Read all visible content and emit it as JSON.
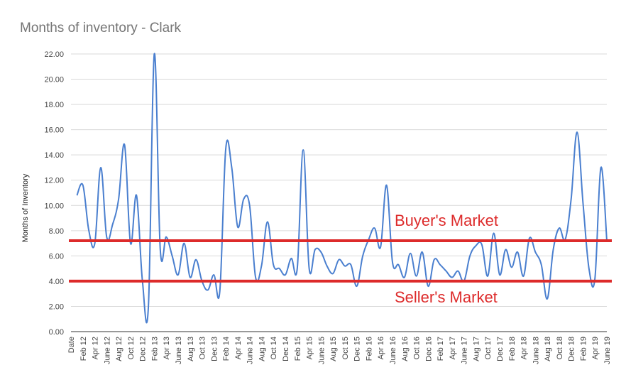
{
  "chart_data": {
    "type": "line",
    "title": "Months of inventory - Clark",
    "ylabel": "Months of Inventory",
    "xlabel": "",
    "ylim": [
      0,
      22
    ],
    "y_ticks": [
      "0.00",
      "2.00",
      "4.00",
      "6.00",
      "8.00",
      "10.00",
      "12.00",
      "14.00",
      "16.00",
      "18.00",
      "20.00",
      "22.00"
    ],
    "grid": "horizontal",
    "line_color": "#4a7fcf",
    "x": [
      "Date",
      "Jan 12",
      "Feb 12",
      "Mar 12",
      "Apr 12",
      "May 12",
      "June 12",
      "Jul 12",
      "Aug 12",
      "Sep 12",
      "Oct 12",
      "Nov 12",
      "Dec 12",
      "Jan 13",
      "Feb 13",
      "Mar 13",
      "Apr 13",
      "May 13",
      "June 13",
      "Jul 13",
      "Aug 13",
      "Sep 13",
      "Oct 13",
      "Nov 13",
      "Dec 13",
      "Jan 14",
      "Feb 14",
      "Mar 14",
      "Apr 14",
      "May 14",
      "June 14",
      "Jul 14",
      "Aug 14",
      "Sep 14",
      "Oct 14",
      "Nov 14",
      "Dec 14",
      "Jan 15",
      "Feb 15",
      "Mar 15",
      "Apr 15",
      "May 15",
      "June 15",
      "Jul 15",
      "Aug 15",
      "Sep 15",
      "Oct 15",
      "Nov 15",
      "Dec 15",
      "Jan 16",
      "Feb 16",
      "Mar 16",
      "Apr 16",
      "May 16",
      "June 16",
      "Jul 16",
      "Aug 16",
      "Sep 16",
      "Oct 16",
      "Nov 16",
      "Dec 16",
      "Jan 17",
      "Feb 17",
      "Mar 17",
      "Apr 17",
      "May 17",
      "June 17",
      "Jul 17",
      "Aug 17",
      "Sep 17",
      "Oct 17",
      "Nov 17",
      "Dec 17",
      "Jan 18",
      "Feb 18",
      "Mar 18",
      "Apr 18",
      "May 18",
      "June 18",
      "Jul 18",
      "Aug 18",
      "Sep 18",
      "Oct 18",
      "Nov 18",
      "Dec 18",
      "Jan 19",
      "Feb 19",
      "Mar 19",
      "Apr 19",
      "May 19",
      "June 19"
    ],
    "x_tick_labels": [
      "Date",
      "Feb 12",
      "Apr 12",
      "June 12",
      "Aug 12",
      "Oct 12",
      "Dec 12",
      "Feb 13",
      "Apr 13",
      "June 13",
      "Aug 13",
      "Oct 13",
      "Dec 13",
      "Feb 14",
      "Apr 14",
      "June 14",
      "Aug 14",
      "Oct 14",
      "Dec 14",
      "Feb 15",
      "Apr 15",
      "June 15",
      "Aug 15",
      "Oct 15",
      "Dec 15",
      "Feb 16",
      "Apr 16",
      "June 16",
      "Aug 16",
      "Oct 16",
      "Dec 16",
      "Feb 17",
      "Apr 17",
      "June 17",
      "Aug 17",
      "Oct 17",
      "Dec 17",
      "Feb 18",
      "Apr 18",
      "June 18",
      "Aug 18",
      "Oct 18",
      "Dec 18",
      "Feb 19",
      "Apr 19",
      "June 19"
    ],
    "series": [
      {
        "values": [
          null,
          10.8,
          11.6,
          8.0,
          7.0,
          13.0,
          7.5,
          8.5,
          10.5,
          14.8,
          7.0,
          10.8,
          4.0,
          2.0,
          22.0,
          6.5,
          7.5,
          6.0,
          4.5,
          7.0,
          4.3,
          5.7,
          4.0,
          3.3,
          4.5,
          3.2,
          14.5,
          13.0,
          8.3,
          10.5,
          10.0,
          4.3,
          5.2,
          8.7,
          5.3,
          5.0,
          4.5,
          5.8,
          5.0,
          14.4,
          5.0,
          6.5,
          6.3,
          5.2,
          4.6,
          5.7,
          5.2,
          5.3,
          3.6,
          6.0,
          7.3,
          8.2,
          6.7,
          11.6,
          5.5,
          5.3,
          4.3,
          6.2,
          4.4,
          6.3,
          3.6,
          5.7,
          5.3,
          4.8,
          4.3,
          4.8,
          4.0,
          6.0,
          6.8,
          6.9,
          4.4,
          7.8,
          4.5,
          6.5,
          5.1,
          6.3,
          4.4,
          7.4,
          6.3,
          5.3,
          2.6,
          6.5,
          8.2,
          7.3,
          10.5,
          15.8,
          10.2,
          5.0,
          4.2,
          13.0,
          7.2
        ]
      }
    ],
    "reference_lines": [
      {
        "value": 7.2,
        "label": "Buyer's Market",
        "color": "#dd2b2b"
      },
      {
        "value": 4.0,
        "label": "Seller's Market",
        "color": "#dd2b2b"
      }
    ]
  }
}
